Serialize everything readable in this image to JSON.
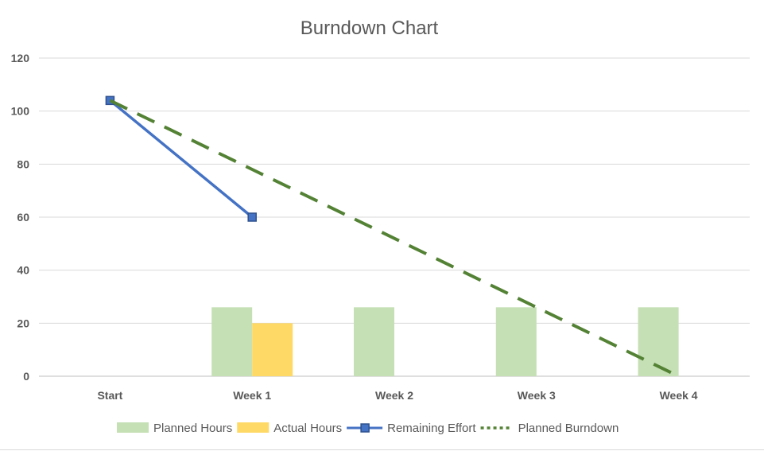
{
  "chart_data": {
    "type": "bar",
    "title": "Burndown Chart",
    "categories": [
      "Start",
      "Week 1",
      "Week 2",
      "Week 3",
      "Week 4"
    ],
    "ylim": [
      0,
      120
    ],
    "yticks": [
      0,
      20,
      40,
      60,
      80,
      100,
      120
    ],
    "grid": true,
    "legend_position": "bottom",
    "series": [
      {
        "name": "Planned Hours",
        "kind": "bar",
        "color": "#c5e0b4",
        "values": [
          0,
          26,
          26,
          26,
          26
        ]
      },
      {
        "name": "Actual Hours",
        "kind": "bar",
        "color": "#ffd966",
        "values": [
          0,
          20,
          null,
          null,
          null
        ]
      },
      {
        "name": "Remaining Effort",
        "kind": "line",
        "color": "#4472c4",
        "marker": "square",
        "values": [
          104,
          60,
          null,
          null,
          null
        ]
      },
      {
        "name": "Planned Burndown",
        "kind": "line",
        "style": "dashed",
        "color": "#548235",
        "values": [
          104,
          78,
          52,
          26,
          0
        ]
      }
    ]
  }
}
